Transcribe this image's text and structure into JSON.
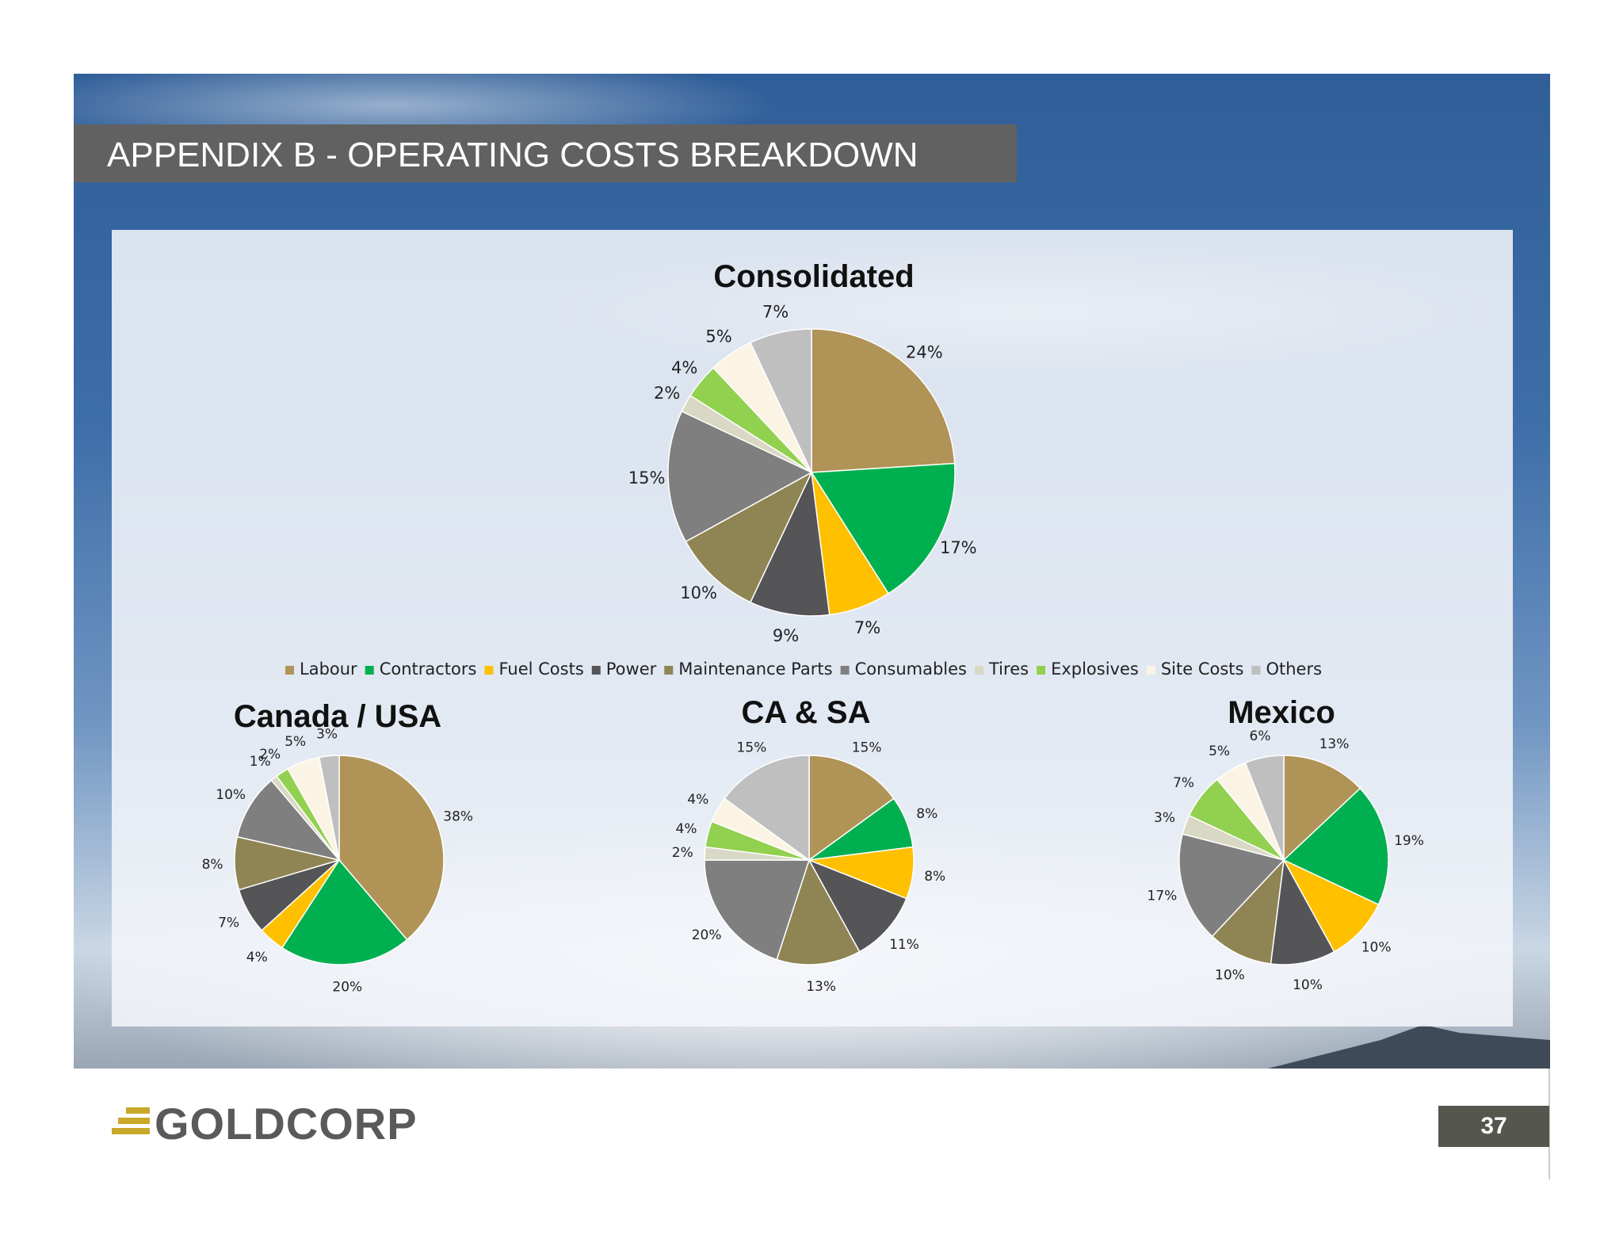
{
  "slide": {
    "title": "APPENDIX B - OPERATING COSTS BREAKDOWN",
    "page_number": "37",
    "logo_text": "GOLDCORP"
  },
  "legend": {
    "items": [
      {
        "label": "Labour",
        "color": "#b09356"
      },
      {
        "label": "Contractors",
        "color": "#00b050"
      },
      {
        "label": "Fuel Costs",
        "color": "#ffc000"
      },
      {
        "label": "Power",
        "color": "#555558"
      },
      {
        "label": "Maintenance Parts",
        "color": "#8f8453"
      },
      {
        "label": "Consumables",
        "color": "#7f7f7f"
      },
      {
        "label": "Tires",
        "color": "#d8d8c4"
      },
      {
        "label": "Explosives",
        "color": "#92d050"
      },
      {
        "label": "Site Costs",
        "color": "#fbf4e4"
      },
      {
        "label": "Others",
        "color": "#bfbfbf"
      }
    ]
  },
  "chart_data": [
    {
      "type": "pie",
      "title": "Consolidated",
      "categories": [
        "Labour",
        "Contractors",
        "Fuel Costs",
        "Power",
        "Maintenance Parts",
        "Consumables",
        "Tires",
        "Explosives",
        "Site Costs",
        "Others"
      ],
      "values": [
        24,
        17,
        7,
        9,
        10,
        15,
        2,
        4,
        5,
        7
      ],
      "labels": [
        "24%",
        "17%",
        "7%",
        "9%",
        "10%",
        "15%",
        "2%",
        "4%",
        "5%",
        "7%"
      ]
    },
    {
      "type": "pie",
      "title": "Canada / USA",
      "categories": [
        "Labour",
        "Contractors",
        "Fuel Costs",
        "Power",
        "Maintenance Parts",
        "Consumables",
        "Tires",
        "Explosives",
        "Site Costs",
        "Others"
      ],
      "values": [
        38,
        20,
        4,
        7,
        8,
        10,
        1,
        2,
        5,
        3
      ],
      "labels": [
        "38%",
        "20%",
        "4%",
        "7%",
        "8%",
        "10%",
        "1%",
        "2%",
        "5%",
        "3%"
      ]
    },
    {
      "type": "pie",
      "title": "CA & SA",
      "categories": [
        "Labour",
        "Contractors",
        "Fuel Costs",
        "Power",
        "Maintenance Parts",
        "Consumables",
        "Tires",
        "Explosives",
        "Site Costs",
        "Others"
      ],
      "values": [
        15,
        8,
        8,
        11,
        13,
        20,
        2,
        4,
        4,
        15
      ],
      "labels": [
        "15%",
        "8%",
        "8%",
        "11%",
        "13%",
        "20%",
        "2%",
        "4%",
        "4%",
        "15%"
      ]
    },
    {
      "type": "pie",
      "title": "Mexico",
      "categories": [
        "Labour",
        "Contractors",
        "Fuel Costs",
        "Power",
        "Maintenance Parts",
        "Consumables",
        "Tires",
        "Explosives",
        "Site Costs",
        "Others"
      ],
      "values": [
        13,
        19,
        10,
        10,
        10,
        17,
        3,
        7,
        5,
        6
      ],
      "labels": [
        "13%",
        "19%",
        "10%",
        "10%",
        "10%",
        "17%",
        "3%",
        "7%",
        "5%",
        "6%"
      ]
    }
  ]
}
